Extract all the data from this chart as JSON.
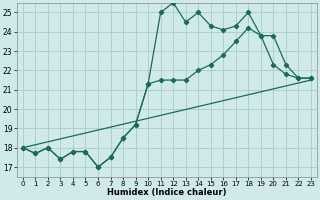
{
  "xlabel": "Humidex (Indice chaleur)",
  "background_color": "#d0eaea",
  "grid_color": "#a8cccc",
  "line_color": "#1a6b5a",
  "xlim": [
    -0.5,
    23.5
  ],
  "ylim": [
    16.5,
    25.5
  ],
  "xticks": [
    0,
    1,
    2,
    3,
    4,
    5,
    6,
    7,
    8,
    9,
    10,
    11,
    12,
    13,
    14,
    15,
    16,
    17,
    18,
    19,
    20,
    21,
    22,
    23
  ],
  "yticks": [
    17,
    18,
    19,
    20,
    21,
    22,
    23,
    24,
    25
  ],
  "line1_x": [
    0,
    1,
    2,
    3,
    4,
    5,
    6,
    7,
    8,
    9,
    10,
    11,
    12,
    13,
    14,
    15,
    16,
    17,
    18,
    19,
    20,
    21,
    22,
    23
  ],
  "line1_y": [
    18.0,
    17.7,
    18.0,
    17.4,
    17.8,
    17.8,
    17.0,
    17.5,
    18.5,
    19.2,
    21.3,
    25.0,
    25.5,
    24.5,
    25.0,
    24.3,
    24.1,
    24.3,
    25.0,
    23.8,
    22.3,
    21.8,
    21.6,
    21.6
  ],
  "line2_x": [
    0,
    1,
    2,
    3,
    4,
    5,
    6,
    7,
    8,
    9,
    10,
    11,
    12,
    13,
    14,
    15,
    16,
    17,
    18,
    19,
    20,
    21,
    22,
    23
  ],
  "line2_y": [
    18.0,
    17.7,
    18.0,
    17.4,
    17.8,
    17.8,
    17.0,
    17.5,
    18.5,
    19.2,
    21.3,
    21.5,
    21.5,
    21.5,
    22.0,
    22.3,
    22.8,
    23.5,
    24.2,
    23.8,
    23.8,
    22.3,
    21.6,
    21.6
  ],
  "line3_x": [
    0,
    23
  ],
  "line3_y": [
    18.0,
    21.5
  ]
}
